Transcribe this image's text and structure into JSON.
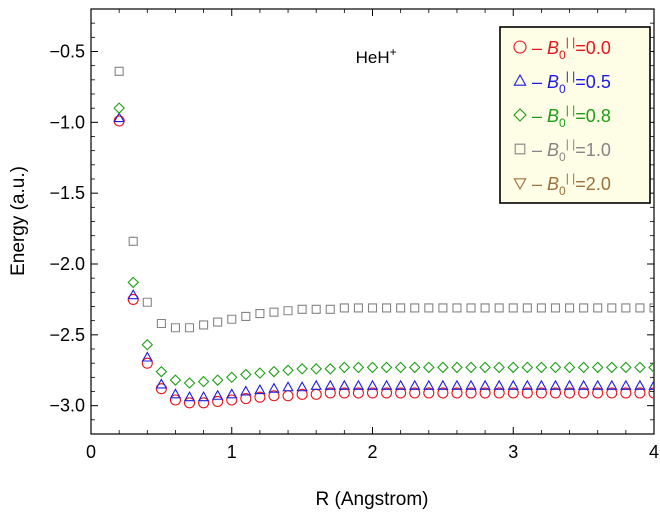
{
  "chart_data": {
    "type": "line",
    "xlabel": "R (Angstrom)",
    "ylabel": "Energy (a.u.)",
    "xlim": [
      0,
      4
    ],
    "ylim": [
      -3.2,
      -0.2
    ],
    "xticks": [
      0,
      1,
      2,
      3,
      4
    ],
    "xtick_labels": [
      "0",
      "1",
      "2",
      "3",
      "4"
    ],
    "yticks": [
      -0.5,
      -1.0,
      -1.5,
      -2.0,
      -2.5,
      -3.0
    ],
    "ytick_labels": [
      "-0.5",
      "-1.0",
      "-1.5",
      "-2.0",
      "-2.5",
      "-3.0"
    ],
    "annotation": {
      "base": "HeH",
      "sup": "+",
      "x": 1.88,
      "y": -0.58
    },
    "legend": {
      "position": "top-right"
    },
    "series": [
      {
        "name": "B0=0.0",
        "label_value": "0.0",
        "color": "#e8141c",
        "marker": "circle",
        "curve": {
          "De": 2.48,
          "Re": 0.77,
          "a": 2.9,
          "Einf": -2.905
        },
        "x": [
          0.2,
          0.3,
          0.4,
          0.5,
          0.6,
          0.7,
          0.8,
          0.9,
          1.0,
          1.1,
          1.2,
          1.3,
          1.4,
          1.5,
          1.6,
          1.7,
          1.8,
          1.9,
          2.0,
          2.1,
          2.2,
          2.3,
          2.4,
          2.5,
          2.6,
          2.7,
          2.8,
          2.9,
          3.0,
          3.1,
          3.2,
          3.3,
          3.4,
          3.5,
          3.6,
          3.7,
          3.8,
          3.9,
          4.0
        ],
        "y": [
          -0.99,
          -2.25,
          -2.7,
          -2.88,
          -2.96,
          -2.98,
          -2.98,
          -2.97,
          -2.96,
          -2.95,
          -2.94,
          -2.93,
          -2.93,
          -2.92,
          -2.92,
          -2.91,
          -2.91,
          -2.91,
          -2.91,
          -2.91,
          -2.91,
          -2.91,
          -2.91,
          -2.91,
          -2.91,
          -2.91,
          -2.91,
          -2.91,
          -2.91,
          -2.91,
          -2.91,
          -2.91,
          -2.91,
          -2.91,
          -2.91,
          -2.91,
          -2.91,
          -2.91,
          -2.91
        ]
      },
      {
        "name": "B0=0.5",
        "label_value": "0.5",
        "color": "#1c1ce0",
        "marker": "triangle-up",
        "curve": {
          "De": 2.45,
          "Re": 0.77,
          "a": 2.9,
          "Einf": -2.855
        },
        "x": [
          0.2,
          0.3,
          0.4,
          0.5,
          0.6,
          0.7,
          0.8,
          0.9,
          1.0,
          1.1,
          1.2,
          1.3,
          1.4,
          1.5,
          1.6,
          1.7,
          1.8,
          1.9,
          2.0,
          2.1,
          2.2,
          2.3,
          2.4,
          2.5,
          2.6,
          2.7,
          2.8,
          2.9,
          3.0,
          3.1,
          3.2,
          3.3,
          3.4,
          3.5,
          3.6,
          3.7,
          3.8,
          3.9,
          4.0
        ],
        "y": [
          -0.97,
          -2.22,
          -2.66,
          -2.85,
          -2.92,
          -2.94,
          -2.94,
          -2.93,
          -2.92,
          -2.9,
          -2.89,
          -2.88,
          -2.87,
          -2.87,
          -2.86,
          -2.86,
          -2.86,
          -2.86,
          -2.86,
          -2.86,
          -2.86,
          -2.86,
          -2.86,
          -2.86,
          -2.86,
          -2.86,
          -2.86,
          -2.86,
          -2.86,
          -2.86,
          -2.86,
          -2.86,
          -2.86,
          -2.86,
          -2.86,
          -2.86,
          -2.86,
          -2.86,
          -2.86
        ]
      },
      {
        "name": "B0=0.8",
        "label_value": "0.8",
        "color": "#1e9e16",
        "marker": "diamond",
        "curve": {
          "De": 2.36,
          "Re": 0.76,
          "a": 2.8,
          "Einf": -2.725
        },
        "x": [
          0.2,
          0.3,
          0.4,
          0.5,
          0.6,
          0.7,
          0.8,
          0.9,
          1.0,
          1.1,
          1.2,
          1.3,
          1.4,
          1.5,
          1.6,
          1.7,
          1.8,
          1.9,
          2.0,
          2.1,
          2.2,
          2.3,
          2.4,
          2.5,
          2.6,
          2.7,
          2.8,
          2.9,
          3.0,
          3.1,
          3.2,
          3.3,
          3.4,
          3.5,
          3.6,
          3.7,
          3.8,
          3.9,
          4.0
        ],
        "y": [
          -0.9,
          -2.13,
          -2.57,
          -2.76,
          -2.82,
          -2.84,
          -2.83,
          -2.82,
          -2.8,
          -2.78,
          -2.77,
          -2.76,
          -2.75,
          -2.74,
          -2.74,
          -2.74,
          -2.73,
          -2.73,
          -2.73,
          -2.73,
          -2.73,
          -2.73,
          -2.73,
          -2.73,
          -2.73,
          -2.73,
          -2.73,
          -2.73,
          -2.73,
          -2.73,
          -2.73,
          -2.73,
          -2.73,
          -2.73,
          -2.73,
          -2.73,
          -2.73,
          -2.73,
          -2.73
        ]
      },
      {
        "name": "B0=1.0",
        "label_value": "1.0",
        "color": "#858585",
        "marker": "square",
        "curve": {
          "De": 1.98,
          "Re": 0.68,
          "a": 2.5,
          "Einf": -2.305
        },
        "x": [
          0.2,
          0.3,
          0.4,
          0.5,
          0.6,
          0.7,
          0.8,
          0.9,
          1.0,
          1.1,
          1.2,
          1.3,
          1.4,
          1.5,
          1.6,
          1.7,
          1.8,
          1.9,
          2.0,
          2.1,
          2.2,
          2.3,
          2.4,
          2.5,
          2.6,
          2.7,
          2.8,
          2.9,
          3.0,
          3.1,
          3.2,
          3.3,
          3.4,
          3.5,
          3.6,
          3.7,
          3.8,
          3.9,
          4.0
        ],
        "y": [
          -0.64,
          -1.84,
          -2.27,
          -2.42,
          -2.45,
          -2.45,
          -2.43,
          -2.41,
          -2.39,
          -2.37,
          -2.35,
          -2.34,
          -2.33,
          -2.32,
          -2.32,
          -2.32,
          -2.31,
          -2.31,
          -2.31,
          -2.31,
          -2.31,
          -2.31,
          -2.31,
          -2.31,
          -2.31,
          -2.31,
          -2.31,
          -2.31,
          -2.31,
          -2.31,
          -2.31,
          -2.31,
          -2.31,
          -2.31,
          -2.31,
          -2.31,
          -2.31,
          -2.31,
          -2.31
        ]
      },
      {
        "name": "B0=2.0",
        "label_value": "2.0",
        "color": "#9b7039",
        "marker": "triangle-down",
        "curve": null,
        "x": [],
        "y": []
      }
    ]
  }
}
